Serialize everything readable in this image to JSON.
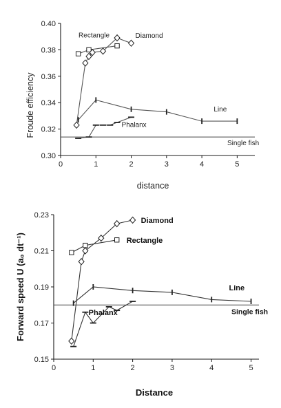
{
  "chart_data": [
    {
      "type": "line",
      "xlabel": "distance",
      "ylabel": "Froude efficiency",
      "xlim": [
        0,
        5.5
      ],
      "ylim": [
        0.3,
        0.4
      ],
      "xticks": [
        "0",
        "1",
        "2",
        "3",
        "4",
        "5"
      ],
      "yticks": [
        "0.30",
        "0.32",
        "0.34",
        "0.36",
        "0.38",
        "0.40"
      ],
      "reference_line": {
        "label": "Single fish",
        "y": 0.314
      },
      "series": [
        {
          "name": "Rectangle",
          "marker": "square",
          "x": [
            0.5,
            0.8,
            1.6
          ],
          "y": [
            0.377,
            0.38,
            0.383
          ]
        },
        {
          "name": "Diamond",
          "marker": "diamond",
          "x": [
            0.45,
            0.7,
            0.8,
            0.9,
            1.2,
            1.6,
            2.0
          ],
          "y": [
            0.323,
            0.37,
            0.375,
            0.378,
            0.379,
            0.389,
            0.385
          ]
        },
        {
          "name": "Line",
          "marker": "vbar",
          "x": [
            0.5,
            1.0,
            2.0,
            3.0,
            4.0,
            5.0
          ],
          "y": [
            0.327,
            0.342,
            0.335,
            0.333,
            0.326,
            0.326
          ]
        },
        {
          "name": "Phalanx",
          "marker": "hbar",
          "x": [
            0.5,
            0.8,
            1.0,
            1.2,
            1.4,
            1.6,
            2.0
          ],
          "y": [
            0.313,
            0.314,
            0.323,
            0.323,
            0.323,
            0.325,
            0.329
          ]
        }
      ]
    },
    {
      "type": "line",
      "xlabel": "Distance",
      "ylabel": "Forward speed U (a₀ dt⁻¹)",
      "xlim": [
        0,
        5.2
      ],
      "ylim": [
        0.15,
        0.23
      ],
      "xticks": [
        "0",
        "1",
        "2",
        "3",
        "4",
        "5"
      ],
      "yticks": [
        "0.15",
        "0.17",
        "0.19",
        "0.21",
        "0.23"
      ],
      "reference_line": {
        "label": "Single fish",
        "y": 0.18
      },
      "series": [
        {
          "name": "Diamond",
          "marker": "diamond",
          "x": [
            0.45,
            0.7,
            0.8,
            1.2,
            1.6,
            2.0
          ],
          "y": [
            0.16,
            0.204,
            0.21,
            0.217,
            0.225,
            0.227
          ]
        },
        {
          "name": "Rectangle",
          "marker": "square",
          "x": [
            0.45,
            0.8,
            1.6
          ],
          "y": [
            0.209,
            0.213,
            0.216
          ]
        },
        {
          "name": "Line",
          "marker": "vbar",
          "x": [
            0.5,
            1.0,
            2.0,
            3.0,
            4.0,
            5.0
          ],
          "y": [
            0.181,
            0.19,
            0.188,
            0.187,
            0.183,
            0.182
          ]
        },
        {
          "name": "Phalanx",
          "marker": "hbar",
          "x": [
            0.5,
            0.8,
            1.0,
            1.4,
            1.6,
            2.0
          ],
          "y": [
            0.157,
            0.176,
            0.17,
            0.179,
            0.177,
            0.182
          ]
        }
      ]
    }
  ]
}
